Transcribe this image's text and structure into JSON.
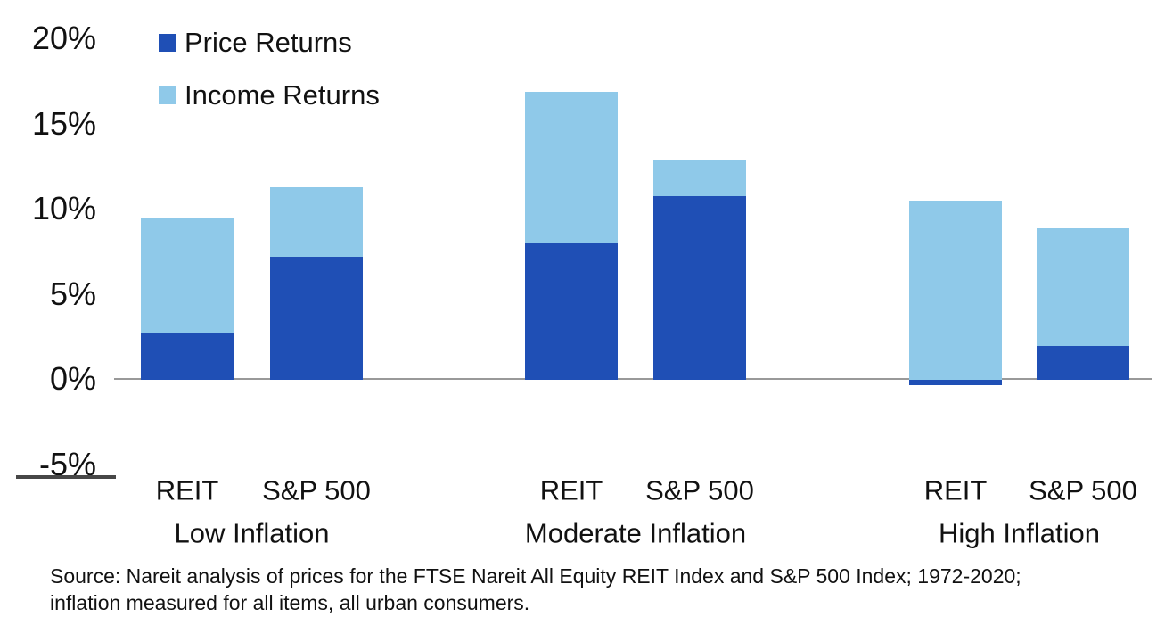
{
  "chart_data": {
    "type": "bar",
    "stacked": true,
    "categories": [
      "Low Inflation",
      "Moderate Inflation",
      "High Inflation"
    ],
    "bar_labels": [
      "REIT",
      "S&P 500"
    ],
    "series": [
      {
        "name": "Price Returns",
        "color": "#1F4FB5",
        "values": [
          [
            2.8,
            7.2
          ],
          [
            8.0,
            10.8
          ],
          [
            -0.3,
            2.0
          ]
        ]
      },
      {
        "name": "Income Returns",
        "color": "#8FC9E9",
        "values": [
          [
            6.7,
            4.1
          ],
          [
            8.9,
            2.1
          ],
          [
            10.5,
            6.9
          ]
        ]
      }
    ],
    "y_axis": {
      "unit": "%",
      "range": [
        -5,
        20
      ],
      "ticks": [
        {
          "label": "20%",
          "value": 20
        },
        {
          "label": "15%",
          "value": 15
        },
        {
          "label": "10%",
          "value": 10
        },
        {
          "label": "5%",
          "value": 5
        },
        {
          "label": "0%",
          "value": 0
        },
        {
          "label": "-5%",
          "value": -5
        }
      ]
    },
    "grid": "off",
    "legend_position": "top-left"
  },
  "source_note": {
    "line1": "Source: Nareit analysis of prices for the FTSE Nareit All Equity REIT Index and S&P 500 Index; 1972-2020;",
    "line2": "inflation measured for all items, all urban consumers."
  },
  "colors": {
    "price_returns": "#1F4FB5",
    "income_returns": "#8FC9E9",
    "axis_line": "#999999",
    "text": "#111111"
  }
}
